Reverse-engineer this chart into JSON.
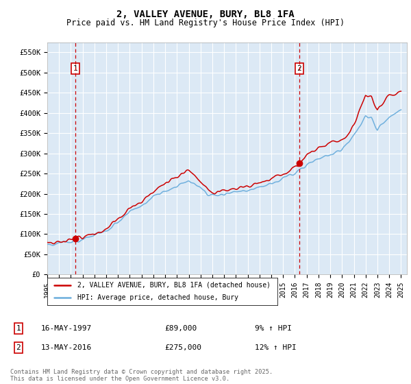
{
  "title1": "2, VALLEY AVENUE, BURY, BL8 1FA",
  "title2": "Price paid vs. HM Land Registry's House Price Index (HPI)",
  "xlim_start": 1995.0,
  "xlim_end": 2025.5,
  "ylim_min": 0,
  "ylim_max": 575000,
  "yticks": [
    0,
    50000,
    100000,
    150000,
    200000,
    250000,
    300000,
    350000,
    400000,
    450000,
    500000,
    550000
  ],
  "ytick_labels": [
    "£0",
    "£50K",
    "£100K",
    "£150K",
    "£200K",
    "£250K",
    "£300K",
    "£350K",
    "£400K",
    "£450K",
    "£500K",
    "£550K"
  ],
  "xticks": [
    1995,
    1996,
    1997,
    1998,
    1999,
    2000,
    2001,
    2002,
    2003,
    2004,
    2005,
    2006,
    2007,
    2008,
    2009,
    2010,
    2011,
    2012,
    2013,
    2014,
    2015,
    2016,
    2017,
    2018,
    2019,
    2020,
    2021,
    2022,
    2023,
    2024,
    2025
  ],
  "marker1_x": 1997.38,
  "marker1_y": 89000,
  "marker2_x": 2016.37,
  "marker2_y": 275000,
  "legend_line1": "2, VALLEY AVENUE, BURY, BL8 1FA (detached house)",
  "legend_line2": "HPI: Average price, detached house, Bury",
  "ann1_label": "1",
  "ann2_label": "2",
  "note1_date": "16-MAY-1997",
  "note1_price": "£89,000",
  "note1_hpi": "9% ↑ HPI",
  "note2_date": "13-MAY-2016",
  "note2_price": "£275,000",
  "note2_hpi": "12% ↑ HPI",
  "footer": "Contains HM Land Registry data © Crown copyright and database right 2025.\nThis data is licensed under the Open Government Licence v3.0.",
  "line_color_red": "#cc0000",
  "line_color_blue": "#6aaddc",
  "bg_color": "#dce9f5",
  "grid_color": "#ffffff",
  "vline_color": "#cc0000"
}
